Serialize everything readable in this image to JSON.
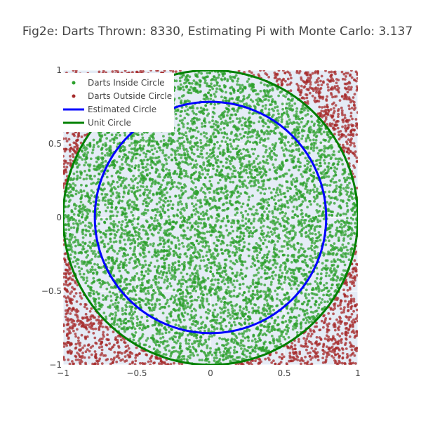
{
  "chart_data": {
    "type": "scatter",
    "title": "Fig2e: Darts Thrown: 8330, Estimating Pi with Monte Carlo: 3.137",
    "xlabel": "",
    "ylabel": "",
    "xlim": [
      -1,
      1
    ],
    "ylim": [
      -1,
      1
    ],
    "x_ticks": [
      "−1",
      "−0.5",
      "0",
      "0.5",
      "1"
    ],
    "y_ticks": [
      "−1",
      "−0.5",
      "0",
      "0.5",
      "1"
    ],
    "grid": true,
    "legend_position": "top-left",
    "darts_thrown": 8330,
    "pi_estimate": 3.137,
    "series": [
      {
        "name": "Darts Inside Circle",
        "kind": "points",
        "color": "#2ca02c",
        "count": 6533
      },
      {
        "name": "Darts Outside Circle",
        "kind": "points",
        "color": "#a52a2a",
        "count": 1797
      },
      {
        "name": "Estimated Circle",
        "kind": "circle",
        "color": "#0000ff",
        "radius": 0.785
      },
      {
        "name": "Unit Circle",
        "kind": "circle",
        "color": "#008000",
        "radius": 1.0
      }
    ],
    "background_color": "#e5ecf6"
  }
}
